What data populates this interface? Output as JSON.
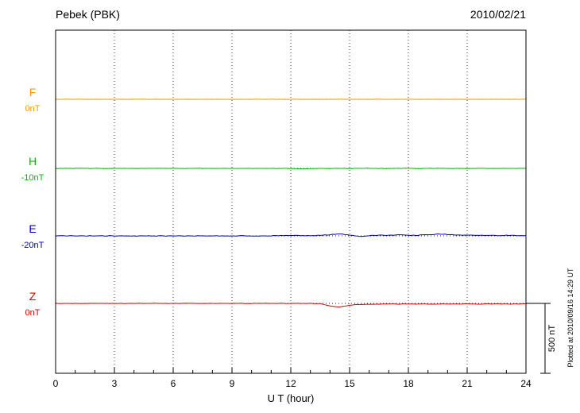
{
  "chart_data": {
    "type": "line",
    "title": "Pebek (PBK)",
    "date": "2010/02/21",
    "xlabel": "U T (hour)",
    "xlim": [
      0,
      24
    ],
    "x_ticks": [
      0,
      3,
      6,
      9,
      12,
      15,
      18,
      21,
      24
    ],
    "x_step_hours": 0.5,
    "grid": "dotted",
    "scale_bar": {
      "label": "500 nT",
      "nT": 500
    },
    "plotted_note": "Plotted at 2010/09/16 14:29 UT",
    "series": [
      {
        "name": "F",
        "baseline_label": "0nT",
        "color": "#f59a00",
        "unit": "nT",
        "noise_nT": 1.0,
        "values": [
          0,
          0,
          0,
          0,
          0,
          0,
          0,
          0,
          0,
          0,
          0,
          0,
          0,
          0,
          0,
          0,
          0,
          0,
          0,
          0,
          0,
          0,
          0,
          0,
          0,
          0,
          0,
          0,
          0,
          0,
          0,
          0,
          0,
          0,
          0,
          0,
          0,
          0,
          0,
          0,
          0,
          0,
          0,
          0,
          0,
          0,
          0,
          0,
          0
        ]
      },
      {
        "name": "H",
        "baseline_label": "-10nT",
        "color": "#00b800",
        "unit": "nT",
        "noise_nT": 1.2,
        "values": [
          0,
          0,
          0,
          0,
          0,
          0,
          0,
          0,
          0,
          0,
          0,
          0,
          0,
          0,
          0,
          0,
          0,
          0,
          0,
          0,
          0,
          0,
          0,
          0,
          -1,
          -3,
          -1,
          0,
          -1,
          1,
          -1,
          0,
          1,
          0,
          -1,
          0,
          1,
          -1,
          0,
          1,
          0,
          0,
          -1,
          0,
          0,
          0,
          0,
          0,
          0
        ]
      },
      {
        "name": "E",
        "baseline_label": "-20nT",
        "color": "#0000cc",
        "unit": "nT",
        "noise_nT": 2.0,
        "values": [
          0,
          0,
          0,
          0,
          0,
          0,
          0,
          0,
          0,
          0,
          0,
          0,
          0,
          0,
          0,
          0,
          0,
          0,
          0,
          0,
          0,
          0,
          1,
          2,
          2,
          3,
          2,
          4,
          8,
          15,
          5,
          -4,
          2,
          6,
          4,
          8,
          3,
          5,
          9,
          12,
          10,
          6,
          5,
          4,
          4,
          3,
          4,
          3,
          3
        ]
      },
      {
        "name": "Z",
        "baseline_label": "0nT",
        "color": "#d40000",
        "unit": "nT",
        "noise_nT": 1.5,
        "values": [
          0,
          0,
          0,
          0,
          0,
          0,
          0,
          0,
          0,
          0,
          0,
          0,
          0,
          0,
          0,
          0,
          0,
          0,
          0,
          0,
          0,
          0,
          0,
          0,
          0,
          0,
          0,
          -2,
          -18,
          -25,
          -12,
          -8,
          -6,
          -5,
          -4,
          -5,
          -4,
          -4,
          -5,
          -4,
          -4,
          -5,
          -4,
          -5,
          -4,
          -4,
          -5,
          -4,
          -4
        ]
      }
    ]
  }
}
